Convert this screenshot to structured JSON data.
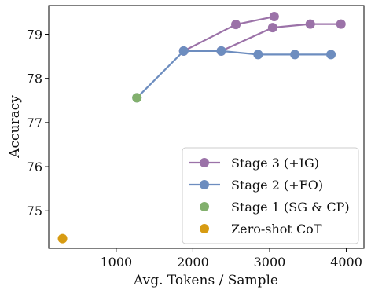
{
  "chart_data": {
    "type": "line",
    "xlabel": "Avg. Tokens / Sample",
    "ylabel": "Accuracy",
    "xlim": [
      120,
      4230
    ],
    "ylim": [
      74.15,
      79.65
    ],
    "xticks": [
      1000,
      2000,
      3000,
      4000
    ],
    "yticks": [
      75,
      76,
      77,
      78,
      79
    ],
    "legend_position": "lower-right",
    "grid": false,
    "series": [
      {
        "name": "Stage 3 (+IG)",
        "color": "#9b72a8",
        "style": "line-marker",
        "points": [
          {
            "x": 1880,
            "y": 78.62
          },
          {
            "x": 2560,
            "y": 79.22
          },
          {
            "x": 3060,
            "y": 79.4
          }
        ]
      },
      {
        "name": "Stage 3 (+IG)",
        "color": "#9b72a8",
        "style": "line-marker",
        "legend": false,
        "points": [
          {
            "x": 2370,
            "y": 78.62
          },
          {
            "x": 3040,
            "y": 79.15
          },
          {
            "x": 3530,
            "y": 79.23
          },
          {
            "x": 3930,
            "y": 79.23
          }
        ]
      },
      {
        "name": "Stage 2 (+FO)",
        "color": "#6d8dbf",
        "style": "line-marker",
        "points": [
          {
            "x": 1270,
            "y": 77.56
          },
          {
            "x": 1880,
            "y": 78.62
          },
          {
            "x": 2370,
            "y": 78.62
          },
          {
            "x": 2850,
            "y": 78.54
          },
          {
            "x": 3330,
            "y": 78.54
          },
          {
            "x": 3800,
            "y": 78.54
          }
        ]
      },
      {
        "name": "Stage 1 (SG & CP)",
        "color": "#82b06d",
        "style": "marker",
        "points": [
          {
            "x": 1270,
            "y": 77.56
          }
        ]
      },
      {
        "name": "Zero-shot CoT",
        "color": "#d79b12",
        "style": "marker",
        "points": [
          {
            "x": 300,
            "y": 74.37
          }
        ]
      }
    ]
  }
}
